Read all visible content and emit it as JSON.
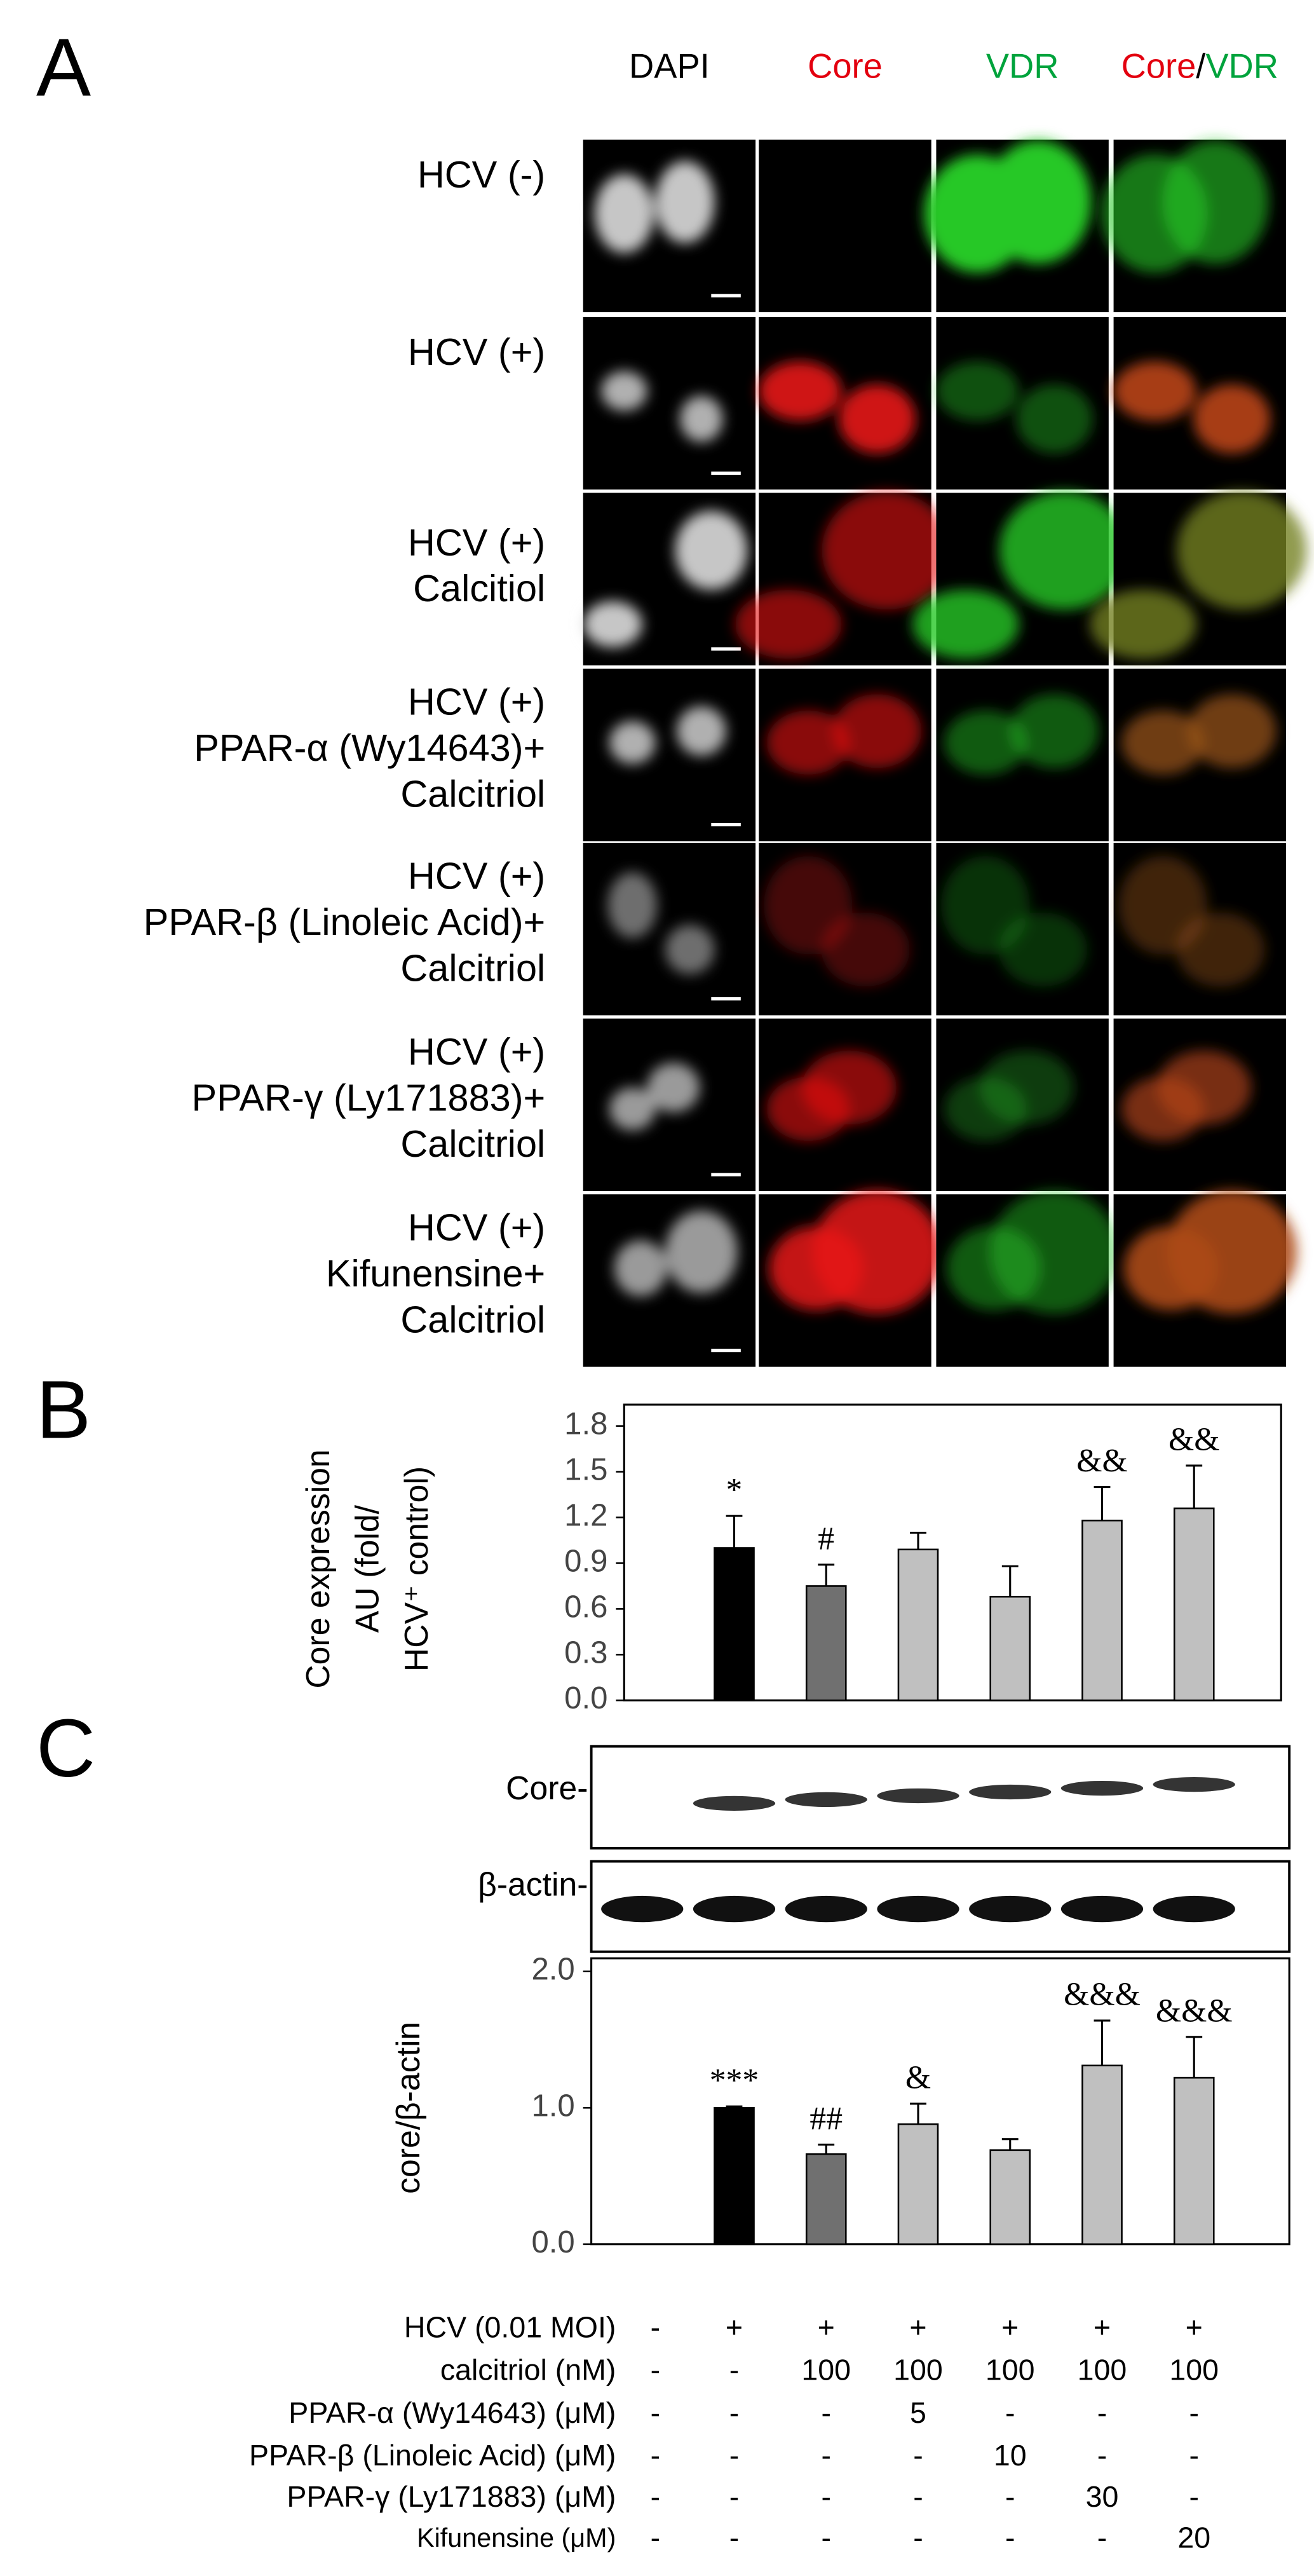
{
  "panel_labels": [
    "A",
    "B",
    "C"
  ],
  "microscopy": {
    "columns": [
      [
        "DAPI"
      ],
      [
        "Core"
      ],
      [
        "VDR"
      ],
      [
        "Core",
        "/",
        "VDR"
      ]
    ],
    "column_colors": [
      [
        "#000000"
      ],
      [
        "#e3000f"
      ],
      [
        "#00a33c"
      ],
      [
        "#e3000f",
        "#000000",
        "#00a33c"
      ]
    ],
    "rows": [
      [
        "HCV (-)"
      ],
      [
        "HCV (+)"
      ],
      [
        "HCV (+)",
        "Calcitiol"
      ],
      [
        "HCV (+)",
        "PPAR-α (Wy14643)+",
        "Calcitriol"
      ],
      [
        "HCV (+)",
        "PPAR-β (Linoleic Acid)+",
        "Calcitriol"
      ],
      [
        "HCV (+)",
        "PPAR-γ (Ly171883)+",
        "Calcitriol"
      ],
      [
        "HCV (+)",
        "Kifunensine+",
        "Calcitriol"
      ]
    ]
  },
  "chart_data": [
    {
      "type": "bar",
      "y_label": [
        "Core expression",
        "AU (fold/",
        "HCV⁺ control)"
      ],
      "categories": [
        null,
        null,
        null,
        null,
        null,
        null,
        null
      ],
      "values": [
        0,
        1.0,
        0.75,
        0.99,
        0.68,
        1.18,
        1.26
      ],
      "errors": [
        0,
        0.21,
        0.14,
        0.11,
        0.2,
        0.22,
        0.28
      ],
      "annotations": [
        null,
        "*",
        "#",
        null,
        null,
        "&&",
        "&&"
      ],
      "colors": [
        "#000000",
        "#000000",
        "#707070",
        "#c0c0c0",
        "#c0c0c0",
        "#c0c0c0",
        "#c0c0c0"
      ],
      "ylim": [
        0,
        1.8
      ],
      "yticks": [
        {
          "value": 0,
          "label": "0.0"
        },
        0.3,
        0.6,
        0.9,
        1.2,
        1.5,
        1.8
      ]
    },
    {
      "type": "bar",
      "y_label": [
        "core/β-actin"
      ],
      "categories": [
        null,
        null,
        null,
        null,
        null,
        null,
        null
      ],
      "values": [
        0,
        1.0,
        0.66,
        0.88,
        0.69,
        1.31,
        1.22
      ],
      "errors": [
        0,
        0.01,
        0.07,
        0.15,
        0.08,
        0.33,
        0.3
      ],
      "annotations": [
        null,
        "***",
        "##",
        "&",
        null,
        "&&&",
        "&&&"
      ],
      "colors": [
        "#000000",
        "#000000",
        "#707070",
        "#c0c0c0",
        "#c0c0c0",
        "#c0c0c0",
        "#c0c0c0"
      ],
      "ylim": [
        0,
        2.0
      ],
      "yticks": [
        {
          "value": 0,
          "label": "0.0"
        },
        {
          "value": 1,
          "label": "1.0"
        },
        {
          "value": 2,
          "label": "2.0"
        }
      ]
    }
  ],
  "western_blot": {
    "labels": [
      "Core-",
      "β-actin-"
    ]
  },
  "treatments": {
    "rows": [
      {
        "label": "HCV (0.01 MOI)",
        "values": [
          "-",
          "+",
          "+",
          "+",
          "+",
          "+",
          "+"
        ]
      },
      {
        "label": "calcitriol (nM)",
        "values": [
          "-",
          "-",
          "100",
          "100",
          "100",
          "100",
          "100"
        ]
      },
      {
        "label": "PPAR-α (Wy14643) (μM)",
        "values": [
          "-",
          "-",
          "-",
          "5",
          "-",
          "-",
          "-"
        ]
      },
      {
        "label": "PPAR-β (Linoleic Acid) (μM)",
        "values": [
          "-",
          "-",
          "-",
          "-",
          "10",
          "-",
          "-"
        ]
      },
      {
        "label": "PPAR-γ (Ly171883) (μM)",
        "values": [
          "-",
          "-",
          "-",
          "-",
          "-",
          "30",
          "-"
        ]
      },
      {
        "label": "Kifunensine (μM)",
        "values": [
          "-",
          "-",
          "-",
          "-",
          "-",
          "-",
          "20"
        ]
      }
    ]
  }
}
